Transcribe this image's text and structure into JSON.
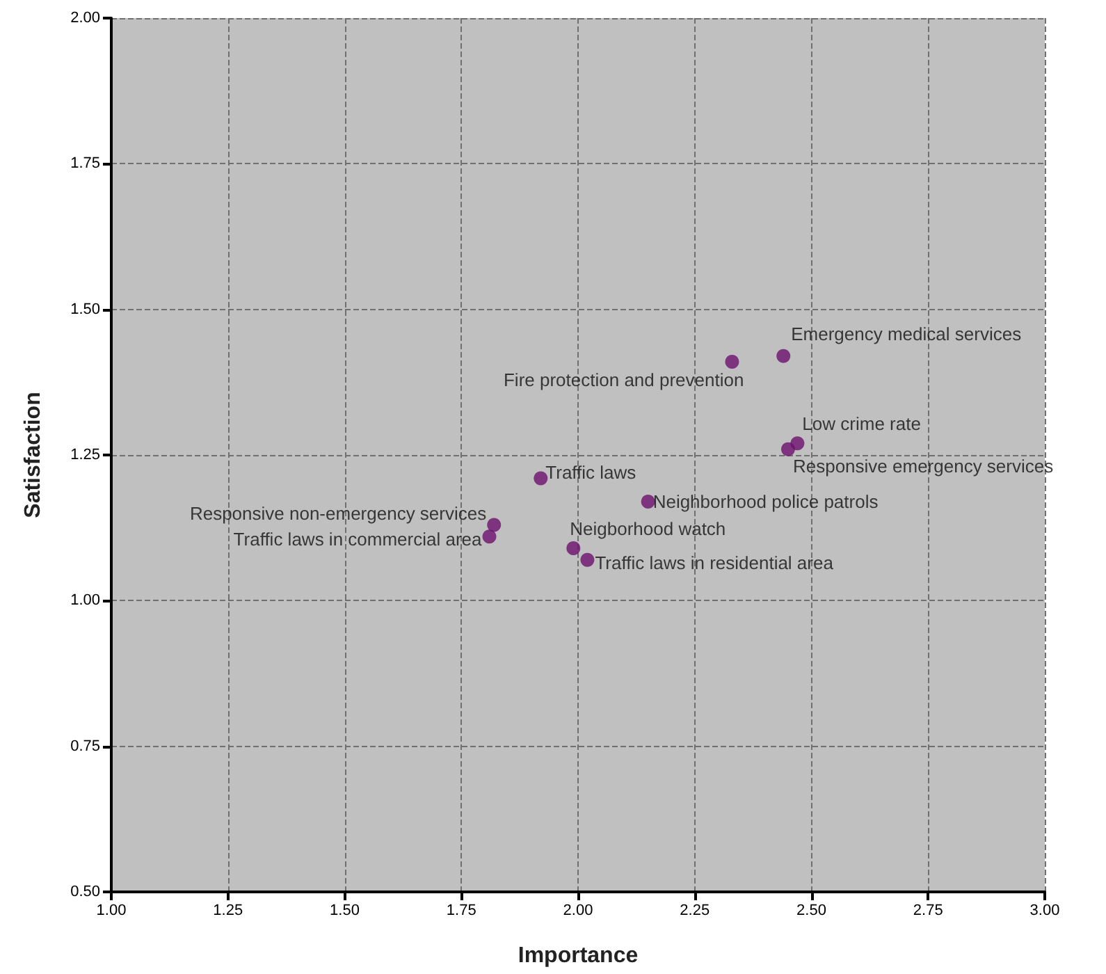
{
  "chart_data": {
    "type": "scatter",
    "xlabel": "Importance",
    "ylabel": "Satisfaction",
    "x": [
      2.44,
      2.33,
      2.47,
      2.45,
      1.92,
      2.15,
      1.82,
      1.81,
      1.99,
      2.02
    ],
    "values": [
      1.42,
      1.41,
      1.27,
      1.26,
      1.21,
      1.17,
      1.13,
      1.11,
      1.09,
      1.07
    ],
    "color": "#6b0f6b",
    "marker": "circle",
    "xlim": [
      1,
      3
    ],
    "xticks": [
      {
        "value": 1,
        "label": "1.00"
      },
      {
        "value": 1.25,
        "label": "1.25"
      },
      {
        "value": 1.5,
        "label": "1.50"
      },
      {
        "value": 1.75,
        "label": "1.75"
      },
      {
        "value": 2,
        "label": "2.00"
      },
      {
        "value": 2.25,
        "label": "2.25"
      },
      {
        "value": 2.5,
        "label": "2.50"
      },
      {
        "value": 2.75,
        "label": "2.75"
      },
      {
        "value": 3,
        "label": "3.00"
      }
    ],
    "ylim": [
      0.5,
      2
    ],
    "yticks": [
      {
        "value": 0.5,
        "label": "0.50"
      },
      {
        "value": 0.75,
        "label": "0.75"
      },
      {
        "value": 1,
        "label": "1.00"
      },
      {
        "value": 1.25,
        "label": "1.25"
      },
      {
        "value": 1.5,
        "label": "1.50"
      },
      {
        "value": 1.75,
        "label": "1.75"
      },
      {
        "value": 2,
        "label": "2.00"
      }
    ],
    "grid": true,
    "annotations": [
      {
        "text": "Emergency medical services",
        "x": 2.44,
        "y": 1.42
      },
      {
        "text": "Fire protection and prevention",
        "x": 2.33,
        "y": 1.41
      },
      {
        "text": "Low crime rate",
        "x": 2.47,
        "y": 1.27
      },
      {
        "text": "Responsive emergency services",
        "x": 2.45,
        "y": 1.26
      },
      {
        "text": "Traffic laws",
        "x": 1.92,
        "y": 1.21
      },
      {
        "text": "Neighborhood police patrols",
        "x": 2.15,
        "y": 1.17
      },
      {
        "text": "Responsive non-emergency services",
        "x": 1.82,
        "y": 1.13
      },
      {
        "text": "Traffic laws in commercial area",
        "x": 1.81,
        "y": 1.11
      },
      {
        "text": "Neigborhood watch",
        "x": 1.99,
        "y": 1.09
      },
      {
        "text": "Traffic laws in residential area",
        "x": 2.02,
        "y": 1.07
      }
    ]
  }
}
